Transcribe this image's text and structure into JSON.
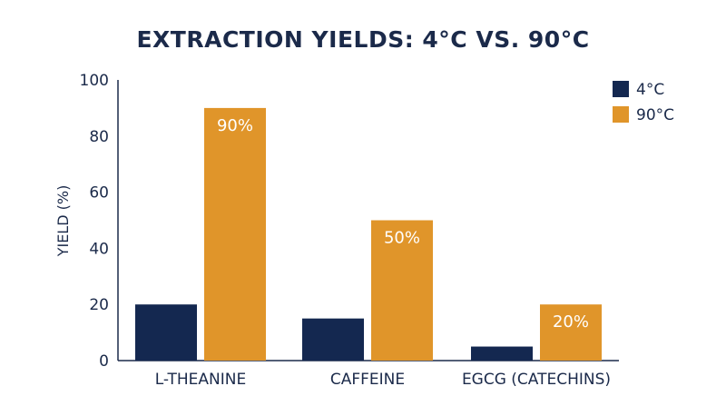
{
  "chart_data": {
    "type": "bar",
    "title": "EXTRACTION YIELDS: 4°C VS. 90°C",
    "ylabel": "YIELD (%)",
    "xlabel": "",
    "ylim": [
      0,
      100
    ],
    "yticks": [
      0,
      20,
      40,
      60,
      80,
      100
    ],
    "categories": [
      "L-THEANINE",
      "CAFFEINE",
      "EGCG (CATECHINS)"
    ],
    "series": [
      {
        "name": "4°C",
        "values": [
          20,
          15,
          5
        ],
        "color": "#142850",
        "labels": [
          "",
          "",
          ""
        ]
      },
      {
        "name": "90°C",
        "values": [
          90,
          50,
          20
        ],
        "color": "#e0952a",
        "labels": [
          "90%",
          "50%",
          "20%"
        ]
      }
    ],
    "legend_position": "top-right",
    "grid": false
  }
}
